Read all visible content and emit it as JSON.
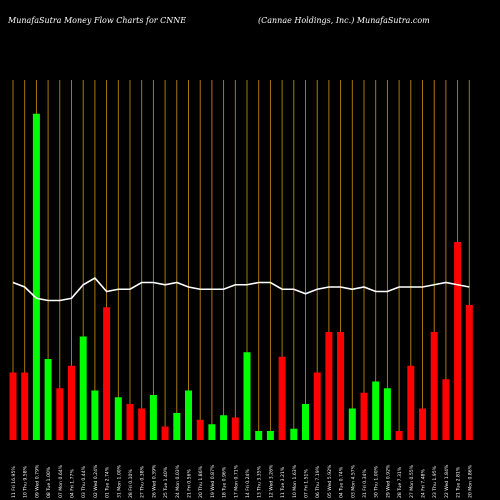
{
  "header": {
    "left": "MunafaSutra  Money Flow  Charts for CNNE",
    "right": "(Cannae   Holdings, Inc.) MunafaSutra.com"
  },
  "chart_data": {
    "type": "bar",
    "title": "MunafaSutra  Money Flow  Charts for CNNE",
    "subtitle": "(Cannae   Holdings, Inc.) MunafaSutra.com",
    "categories": [
      "11 Fri 16.95%",
      "10 Thu 9.58%",
      "09 Wed 0.79%",
      "08 Tue 1.00%",
      "07 Mon 0.64%",
      "04 Fri 1.77%",
      "03 Thu 0.44%",
      "02 Wed 0.24%",
      "01 Tue 2.74%",
      "31 Mon 1.00%",
      "28 Fri 0.10%",
      "27 Thu 0.38%",
      "26 Wed 0.39%",
      "25 Tue 1.40%",
      "24 Mon 0.03%",
      "21 Fri 0.56%",
      "20 Thu 1.86%",
      "19 Wed 0.87%",
      "18 Tue 0.96%",
      "17 Mon 0.71%",
      "14 Fri 0.24%",
      "13 Thu 3.35%",
      "12 Wed 3.26%",
      "11 Tue 3.21%",
      "10 Mon 1.63%",
      "07 Fri 1.51%",
      "06 Thu 7.19%",
      "05 Wed 5.92%",
      "04 Tue 0.74%",
      "03 Mon 4.57%",
      "31 Fri 0.34%",
      "30 Thu 1.00%",
      "29 Wed 0.92%",
      "28 Tue 7.31%",
      "27 Mon 0.55%",
      "24 Fri 7.48%",
      "23 Thu 1.95%",
      "22 Wed 1.84%",
      "21 Tue 2.81%",
      "20 Mon 0.86%"
    ],
    "series": [
      {
        "values": [
          30,
          30,
          145,
          36,
          23,
          33,
          46,
          22,
          59,
          19,
          16,
          14,
          20,
          6,
          12,
          22,
          9,
          7,
          11,
          10,
          39,
          4,
          4,
          37,
          5,
          16,
          30,
          48,
          48,
          14,
          21,
          26,
          23,
          4,
          33,
          14,
          48,
          27,
          88,
          60
        ],
        "colors": [
          "red",
          "red",
          "green",
          "green",
          "red",
          "red",
          "green",
          "green",
          "red",
          "green",
          "red",
          "red",
          "green",
          "red",
          "green",
          "green",
          "red",
          "green",
          "green",
          "red",
          "green",
          "green",
          "green",
          "red",
          "green",
          "green",
          "red",
          "red",
          "red",
          "green",
          "red",
          "green",
          "green",
          "red",
          "red",
          "red",
          "red",
          "red",
          "red",
          "red"
        ]
      },
      {
        "values": [
          70,
          68,
          63,
          62,
          62,
          63,
          69,
          72,
          66,
          67,
          67,
          70,
          70,
          69,
          70,
          68,
          67,
          67,
          67,
          69,
          69,
          70,
          70,
          67,
          67,
          65,
          67,
          68,
          68,
          67,
          68,
          66,
          66,
          68,
          68,
          68,
          69,
          70,
          69,
          68
        ]
      }
    ],
    "ylim": [
      0,
      160
    ],
    "grid": "vertical",
    "colors": {
      "background": "#000000",
      "grid": "#b8860b",
      "positive": "#00ff00",
      "negative": "#ff0000",
      "line": "#ffffff",
      "text": "#ffffff"
    }
  }
}
